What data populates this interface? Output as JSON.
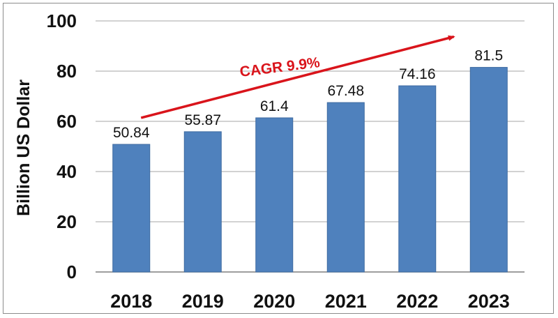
{
  "chart_data": {
    "type": "bar",
    "categories": [
      "2018",
      "2019",
      "2020",
      "2021",
      "2022",
      "2023"
    ],
    "values": [
      50.84,
      55.87,
      61.4,
      67.48,
      74.16,
      81.5
    ],
    "data_labels": [
      "50.84",
      "55.87",
      "61.4",
      "67.48",
      "74.16",
      "81.5"
    ],
    "title": "",
    "xlabel": "",
    "ylabel": "Billion US Dollar",
    "ylim": [
      0,
      100
    ],
    "yticks": [
      0,
      20,
      40,
      60,
      80,
      100
    ],
    "grid": true,
    "bar_color": "#4f81bd",
    "annotation": {
      "text": "CAGR 9.9%",
      "color": "#d9141b",
      "from_category": "2018",
      "to_category": "2023"
    }
  }
}
